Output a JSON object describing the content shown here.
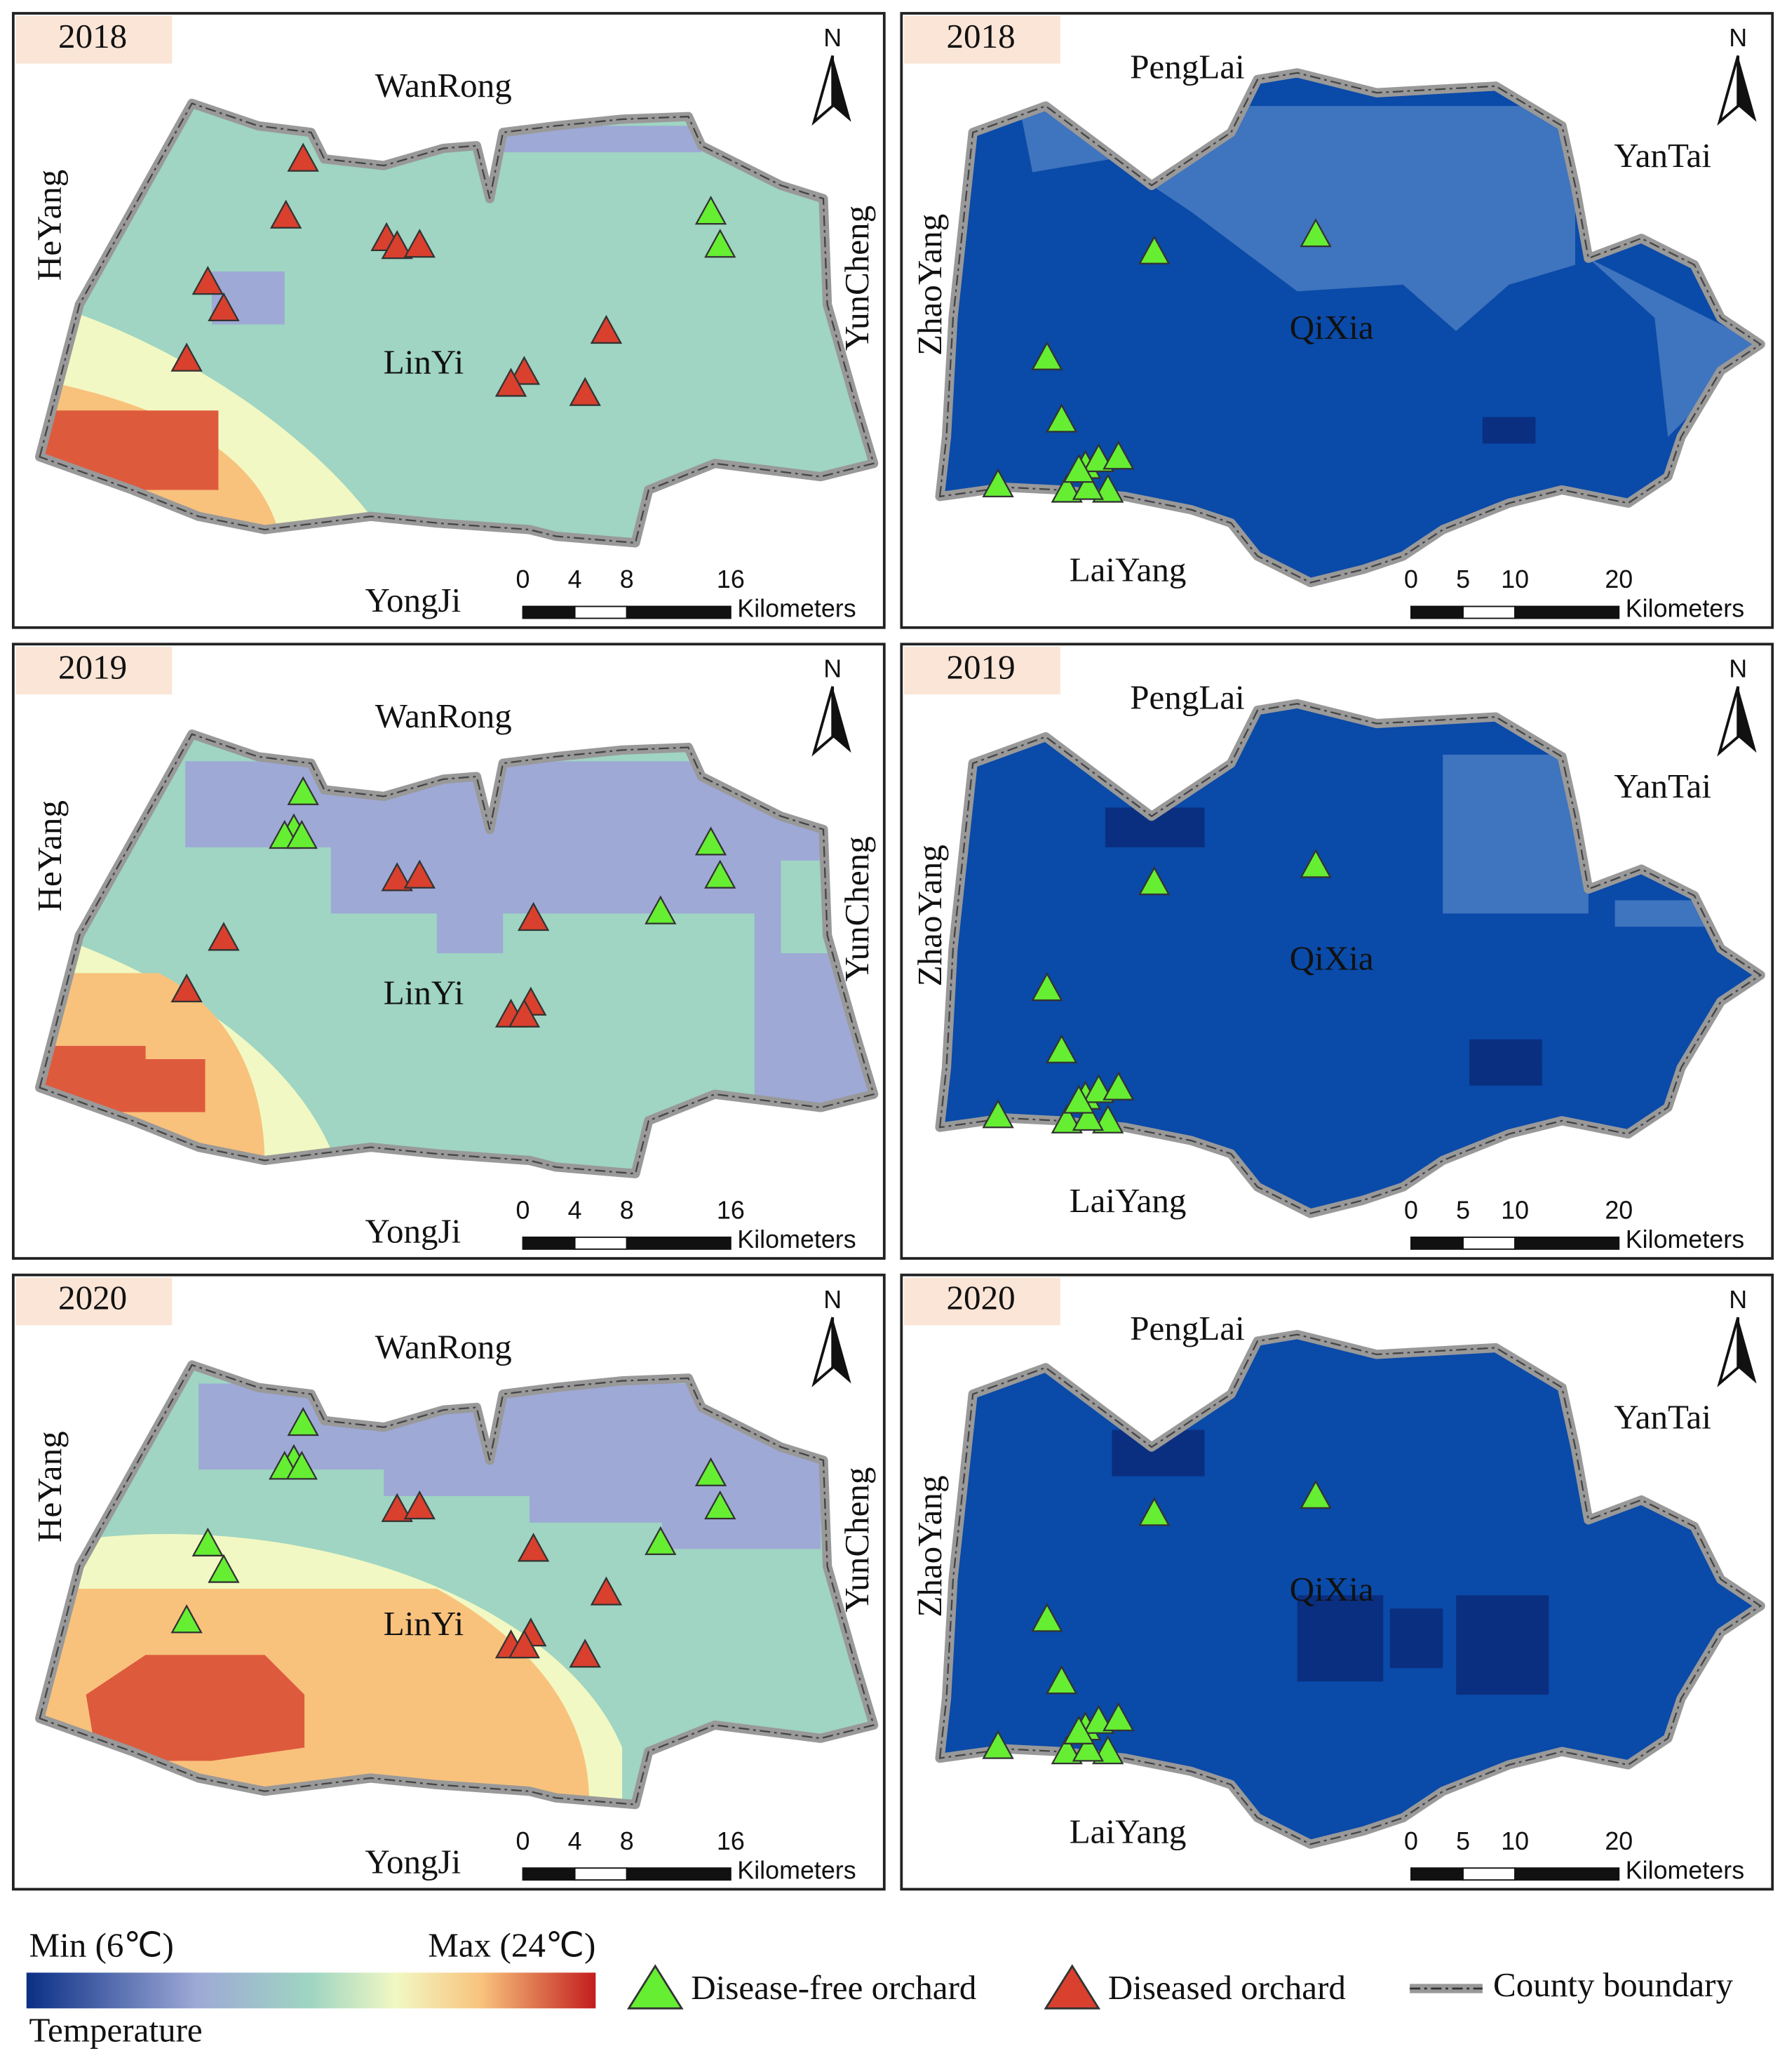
{
  "panels": [
    {
      "year": "2018",
      "places": [
        "WanRong",
        "HeYang",
        "YunCheng",
        "LinYi",
        "YongJi"
      ],
      "scale": [
        0,
        4,
        8,
        16
      ],
      "unit": "Kilometers",
      "north": "N"
    },
    {
      "year": "2018",
      "places": [
        "PengLai",
        "YanTai",
        "ZhaoYang",
        "QiXia",
        "LaiYang"
      ],
      "scale": [
        0,
        5,
        10,
        20
      ],
      "unit": "Kilometers",
      "north": "N"
    },
    {
      "year": "2019",
      "places": [
        "WanRong",
        "HeYang",
        "YunCheng",
        "LinYi",
        "YongJi"
      ],
      "scale": [
        0,
        4,
        8,
        16
      ],
      "unit": "Kilometers",
      "north": "N"
    },
    {
      "year": "2019",
      "places": [
        "PengLai",
        "YanTai",
        "ZhaoYang",
        "QiXia",
        "LaiYang"
      ],
      "scale": [
        0,
        5,
        10,
        20
      ],
      "unit": "Kilometers",
      "north": "N"
    },
    {
      "year": "2020",
      "places": [
        "WanRong",
        "HeYang",
        "YunCheng",
        "LinYi",
        "YongJi"
      ],
      "scale": [
        0,
        4,
        8,
        16
      ],
      "unit": "Kilometers",
      "north": "N"
    },
    {
      "year": "2020",
      "places": [
        "PengLai",
        "YanTai",
        "ZhaoYang",
        "QiXia",
        "LaiYang"
      ],
      "scale": [
        0,
        5,
        10,
        20
      ],
      "unit": "Kilometers",
      "north": "N"
    }
  ],
  "legend": {
    "min": "Min (6℃)",
    "max": "Max (24℃)",
    "title": "Temperature",
    "free": "Disease-free orchard",
    "diseased": "Diseased orchard",
    "boundary": "County boundary"
  }
}
